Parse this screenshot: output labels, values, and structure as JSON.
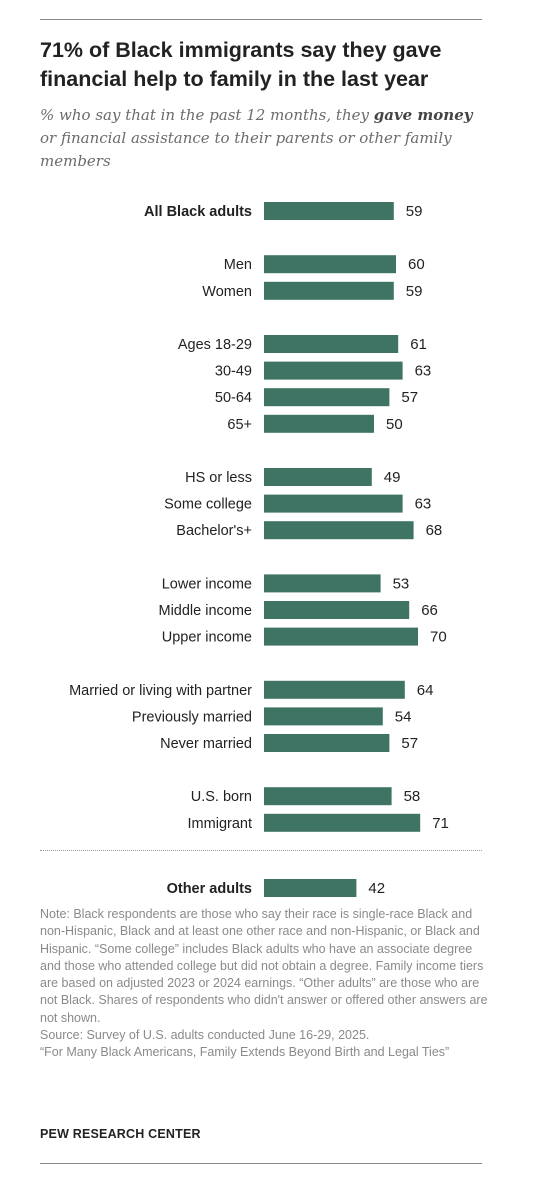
{
  "title": "71% of Black immigrants say they gave financial help to family in the last year",
  "subtitle_pre": "% who say that in the past 12 months, they ",
  "subtitle_bold": "gave money",
  "subtitle_post": " or financial assistance to their parents or other family members",
  "note": "Note: Black respondents are those who say their race is single-race Black and non-Hispanic, Black and at least one other race and non-Hispanic, or Black and Hispanic. “Some college” includes Black adults who have an associate degree and those who attended college but did not obtain a degree. Family income tiers are based on adjusted 2023 or 2024 earnings. “Other adults” are those who are not Black. Shares of respondents who didn't answer or offered other answers are not shown.",
  "source": "Source: Survey of U.S. adults conducted June 16-29, 2025.",
  "report": "“For Many Black Americans, Family Extends Beyond Birth and Legal Ties”",
  "logo": "PEW RESEARCH CENTER",
  "colors": {
    "bar": "#3f7465",
    "text": "#222222",
    "muted": "#8a8a8a"
  },
  "chart_data": {
    "type": "bar",
    "orientation": "horizontal",
    "data_labels": true,
    "grid": false,
    "legend": "none",
    "xlim": [
      0,
      100
    ],
    "categories": [
      "All Black adults",
      "Men",
      "Women",
      "Ages 18-29",
      "30-49",
      "50-64",
      "65+",
      "HS or less",
      "Some college",
      "Bachelor's+",
      "Lower income",
      "Middle income",
      "Upper income",
      "Married or living with partner",
      "Previously married",
      "Never married",
      "U.S. born",
      "Immigrant",
      "Other adults"
    ],
    "values": [
      59,
      60,
      59,
      61,
      63,
      57,
      50,
      49,
      63,
      68,
      53,
      66,
      70,
      64,
      54,
      57,
      58,
      71,
      42
    ],
    "bold_categories": [
      "All Black adults",
      "Other adults"
    ],
    "groups": [
      [
        "All Black adults"
      ],
      [
        "Men",
        "Women"
      ],
      [
        "Ages 18-29",
        "30-49",
        "50-64",
        "65+"
      ],
      [
        "HS or less",
        "Some college",
        "Bachelor's+"
      ],
      [
        "Lower income",
        "Middle income",
        "Upper income"
      ],
      [
        "Married or living with partner",
        "Previously married",
        "Never married"
      ],
      [
        "U.S. born",
        "Immigrant"
      ],
      [
        "Other adults"
      ]
    ]
  }
}
